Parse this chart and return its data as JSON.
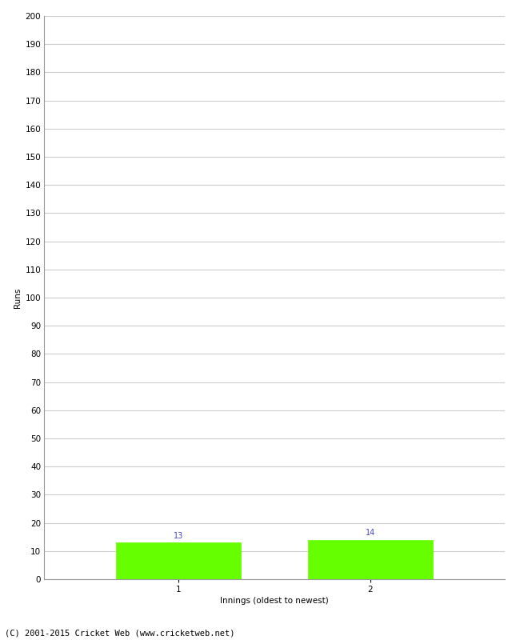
{
  "categories": [
    1,
    2
  ],
  "values": [
    13,
    14
  ],
  "bar_color": "#66ff00",
  "bar_edge_color": "#66ff00",
  "ylabel": "Runs",
  "xlabel": "Innings (oldest to newest)",
  "ylim": [
    0,
    200
  ],
  "yticks": [
    0,
    10,
    20,
    30,
    40,
    50,
    60,
    70,
    80,
    90,
    100,
    110,
    120,
    130,
    140,
    150,
    160,
    170,
    180,
    190,
    200
  ],
  "annotation_color": "#4444cc",
  "annotation_fontsize": 7,
  "background_color": "#ffffff",
  "grid_color": "#cccccc",
  "footer_text": "(C) 2001-2015 Cricket Web (www.cricketweb.net)",
  "footer_fontsize": 7.5,
  "axis_label_fontsize": 7.5,
  "tick_fontsize": 7.5,
  "bar_width": 0.65,
  "xlim": [
    0.3,
    2.7
  ]
}
